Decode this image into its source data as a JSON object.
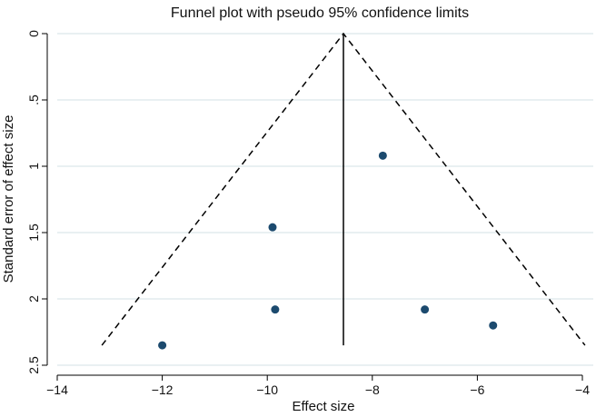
{
  "chart_data": {
    "type": "scatter",
    "title": "Funnel plot with pseudo 95% confidence limits",
    "xlabel": "Effect size",
    "ylabel": "Standard error of effect size",
    "xlim": [
      -14,
      -4
    ],
    "ylim": [
      0,
      2.5
    ],
    "y_reversed": true,
    "x_ticks": [
      -14,
      -12,
      -10,
      -8,
      -6,
      -4
    ],
    "x_tick_labels": [
      "−14",
      "−12",
      "−10",
      "−8",
      "−6",
      "−4"
    ],
    "y_ticks": [
      0,
      0.5,
      1,
      1.5,
      2,
      2.5
    ],
    "y_tick_labels": [
      "0",
      ".5",
      "1",
      "1.5",
      "2",
      "2.5"
    ],
    "grid": true,
    "points": [
      {
        "x": -7.8,
        "y": 0.92
      },
      {
        "x": -9.9,
        "y": 1.46
      },
      {
        "x": -9.85,
        "y": 2.08
      },
      {
        "x": -7.0,
        "y": 2.08
      },
      {
        "x": -5.7,
        "y": 2.2
      },
      {
        "x": -12.0,
        "y": 2.35
      }
    ],
    "pooled_effect": -8.55,
    "funnel_limits": {
      "apex": [
        -8.55,
        0
      ],
      "left": [
        -13.15,
        2.35
      ],
      "right": [
        -3.95,
        2.35
      ]
    },
    "colors": {
      "point": "#1c4a6e",
      "grid": "#dce6ea",
      "line": "#000000"
    }
  }
}
